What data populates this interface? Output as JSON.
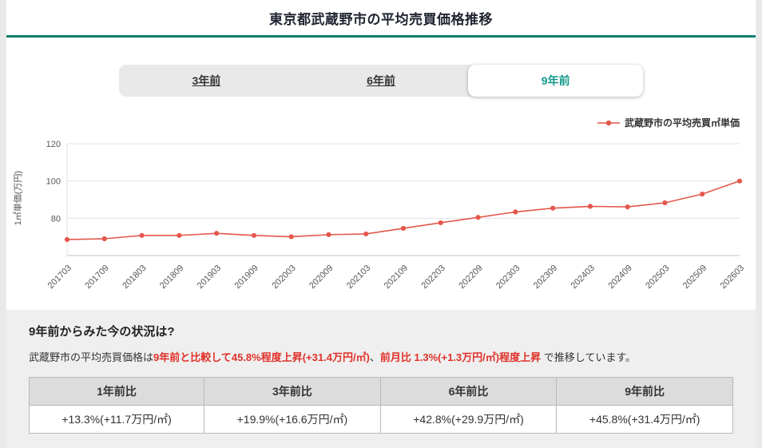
{
  "page": {
    "title": "東京都武蔵野市の平均売買価格推移"
  },
  "colors": {
    "accent_teal": "#0e7d6d",
    "active_tab_teal": "#14998a",
    "chart_line_red": "#e4574d",
    "highlight_red": "#e1312a"
  },
  "tabs": [
    {
      "label": "3年前",
      "active": false
    },
    {
      "label": "6年前",
      "active": false
    },
    {
      "label": "9年前",
      "active": true
    }
  ],
  "chart_data": {
    "type": "line",
    "legend": "武蔵野市の平均売買㎡単価",
    "ylabel": "1㎡単価(万円)",
    "xlabel": "",
    "ylim": [
      60,
      120
    ],
    "yticks": [
      120,
      100,
      80
    ],
    "grid": true,
    "legend_position": "top-right",
    "x": [
      "201703",
      "201709",
      "201803",
      "201809",
      "201903",
      "201909",
      "202003",
      "202009",
      "202103",
      "202109",
      "202203",
      "202209",
      "202303",
      "202309",
      "202403",
      "202409",
      "202503",
      "202509",
      "202603"
    ],
    "series": [
      {
        "name": "武蔵野市の平均売買㎡単価",
        "color": "#e4574d",
        "values": [
          68.6,
          69.0,
          70.8,
          70.8,
          71.9,
          70.8,
          70.1,
          71.2,
          71.6,
          74.6,
          77.6,
          80.5,
          83.4,
          85.4,
          86.4,
          86.1,
          88.3,
          93.0,
          100.0
        ]
      }
    ]
  },
  "summary": {
    "heading": "9年前からみた今の状況は?",
    "text_prefix": "武蔵野市の平均売買価格は",
    "highlight1": "9年前と比較して45.8%程度上昇(+31.4万円/㎡)",
    "separator": "、",
    "highlight2": "前月比 1.3%(+1.3万円/㎡)程度上昇",
    "text_suffix": " で推移しています。"
  },
  "comparison_table": {
    "headers": [
      "1年前比",
      "3年前比",
      "6年前比",
      "9年前比"
    ],
    "values": [
      "+13.3%(+11.7万円/㎡)",
      "+19.9%(+16.6万円/㎡)",
      "+42.8%(+29.9万円/㎡)",
      "+45.8%(+31.4万円/㎡)"
    ]
  }
}
